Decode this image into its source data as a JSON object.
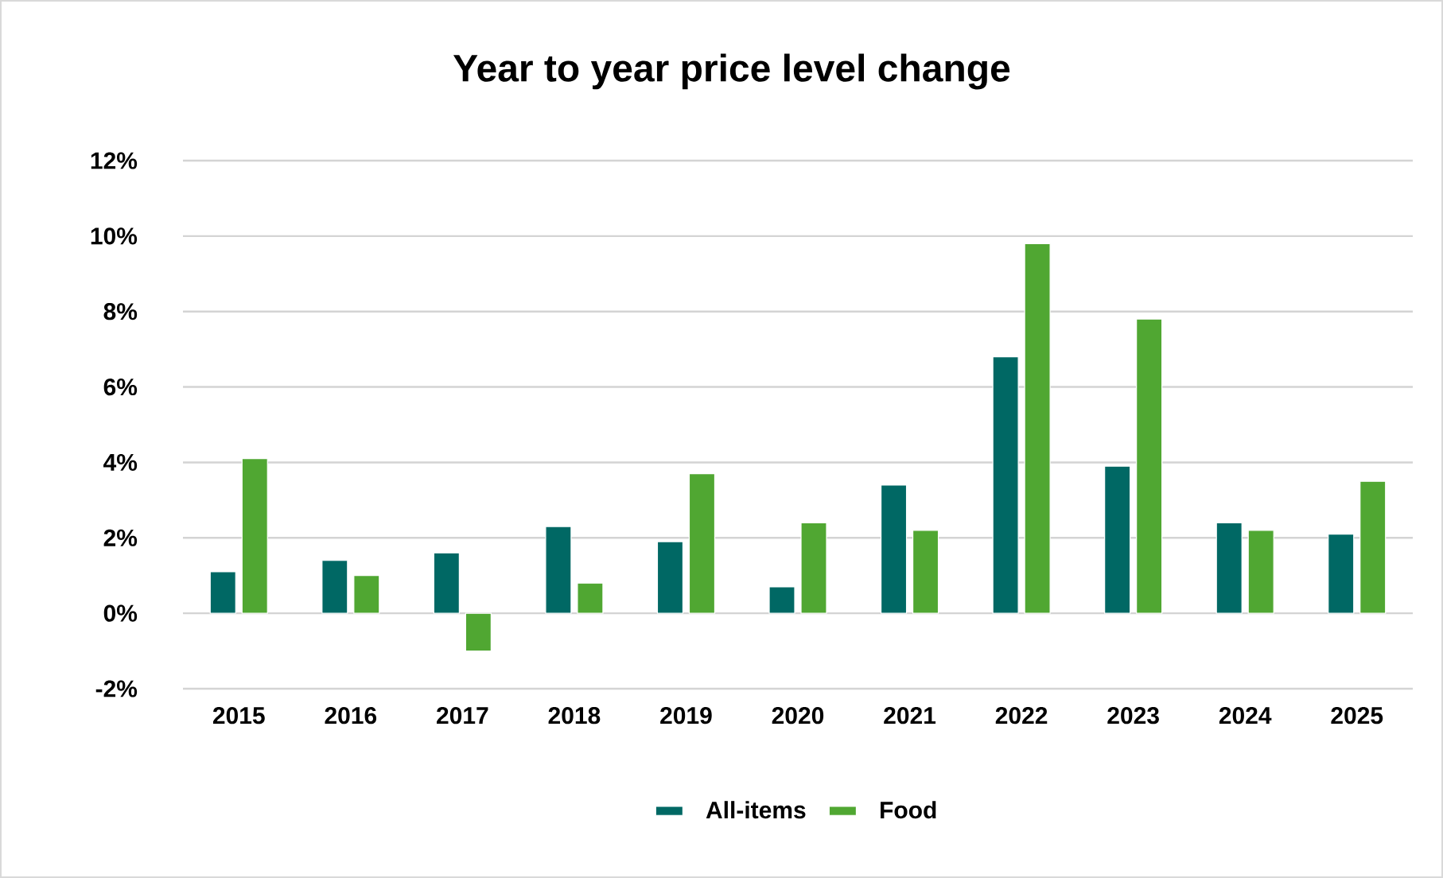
{
  "chart_data": {
    "type": "bar",
    "title": "Year to year price level change",
    "categories": [
      "2015",
      "2016",
      "2017",
      "2018",
      "2019",
      "2020",
      "2021",
      "2022",
      "2023",
      "2024",
      "2025"
    ],
    "series": [
      {
        "name": "All-items",
        "color": "#006864",
        "values": [
          1.1,
          1.4,
          1.6,
          2.3,
          1.9,
          0.7,
          3.4,
          6.8,
          3.9,
          2.4,
          2.1
        ]
      },
      {
        "name": "Food",
        "color": "#50a732",
        "values": [
          4.1,
          1.0,
          -1.0,
          0.8,
          3.7,
          2.4,
          2.2,
          9.8,
          7.8,
          2.2,
          3.5
        ]
      }
    ],
    "ylim": [
      -2,
      12
    ],
    "yticks": [
      {
        "value": -2,
        "label": "-2%"
      },
      {
        "value": 0,
        "label": "0%"
      },
      {
        "value": 2,
        "label": "2%"
      },
      {
        "value": 4,
        "label": "4%"
      },
      {
        "value": 6,
        "label": "6%"
      },
      {
        "value": 8,
        "label": "8%"
      },
      {
        "value": 10,
        "label": "10%"
      },
      {
        "value": 12,
        "label": "12%"
      }
    ],
    "grid": "y",
    "legend": "bottom"
  }
}
